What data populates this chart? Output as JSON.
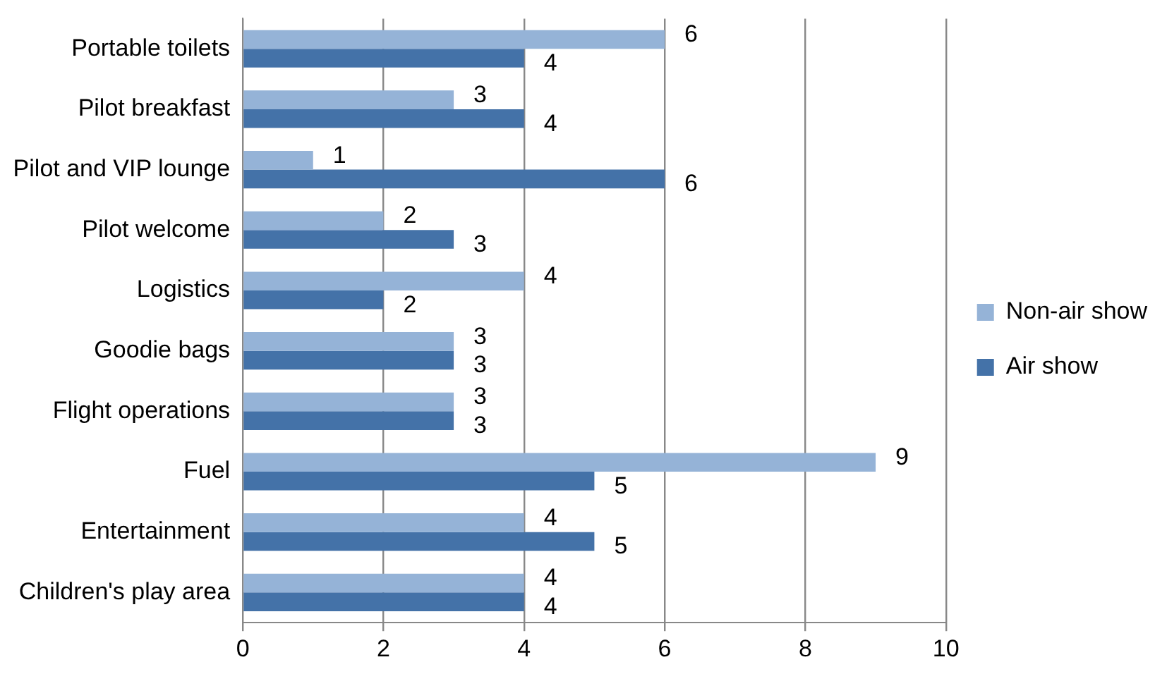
{
  "chart_data": {
    "type": "bar",
    "orientation": "horizontal",
    "categories": [
      "Portable toilets",
      "Pilot breakfast",
      "Pilot and VIP lounge",
      "Pilot welcome",
      "Logistics",
      "Goodie bags",
      "Flight operations",
      "Fuel",
      "Entertainment",
      "Children's play area"
    ],
    "series": [
      {
        "name": "Non-air show",
        "color": "#95b3d7",
        "values": [
          6,
          3,
          1,
          2,
          4,
          3,
          3,
          9,
          4,
          4
        ]
      },
      {
        "name": "Air show",
        "color": "#4472a8",
        "values": [
          4,
          4,
          6,
          3,
          2,
          3,
          3,
          5,
          5,
          4
        ]
      }
    ],
    "xlim": [
      0,
      10
    ],
    "xticks": [
      0,
      2,
      4,
      6,
      8,
      10
    ],
    "grid": "x",
    "legend": "right",
    "data_labels": true
  }
}
